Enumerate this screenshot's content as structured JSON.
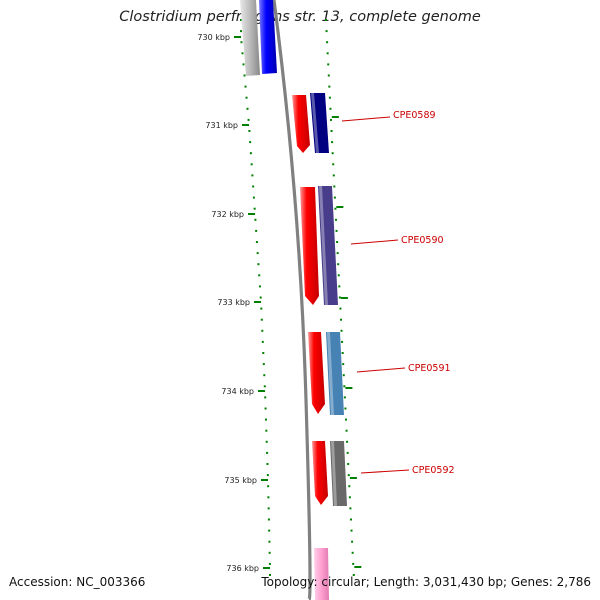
{
  "title": "Clostridium perfringens str. 13, complete genome",
  "accession": "Accession: NC_003366",
  "summary": "Topology: circular; Length: 3,031,430 bp; Genes: 2,786",
  "ticks": [
    "730 kbp",
    "731 kbp",
    "732 kbp",
    "733 kbp",
    "734 kbp",
    "735 kbp",
    "736 kbp"
  ],
  "genes": [
    {
      "label": "CPE0589",
      "color": "#000080"
    },
    {
      "label": "CPE0590",
      "color": "#483d8b"
    },
    {
      "label": "CPE0591",
      "color": "#4682b4"
    },
    {
      "label": "CPE0592",
      "color": "#696969"
    }
  ],
  "colors": {
    "forward_strand": "#ff0000",
    "tick": "#008000",
    "backbone": "#808080",
    "label": "#cc0000"
  }
}
